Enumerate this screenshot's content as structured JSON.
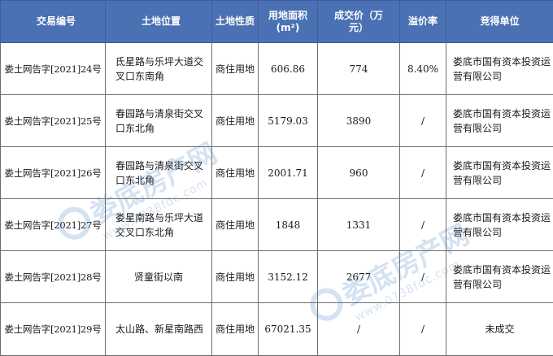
{
  "headers": {
    "code": "交易编号",
    "location": "土地位置",
    "nature": "土地性质",
    "area": "用地面积\n(m²)",
    "price": "成交价（万\n元）",
    "premium": "溢价率",
    "winner": "竞得单位"
  },
  "rows": [
    {
      "code": "娄土网告字[2021]24号",
      "location": "氐星路与乐坪大道交叉口东南角",
      "nature": "商住用地",
      "area": "606.86",
      "price": "774",
      "premium": "8.40%",
      "winner": "娄底市国有资本投资运营有限公司"
    },
    {
      "code": "娄土网告字[2021]25号",
      "location": "春园路与清泉街交叉口东北角",
      "nature": "商住用地",
      "area": "5179.03",
      "price": "3890",
      "premium": "/",
      "winner": "娄底市国有资本投资运营有限公司"
    },
    {
      "code": "娄土网告字[2021]26号",
      "location": "春园路与清泉街交叉口东北角",
      "nature": "商住用地",
      "area": "2001.71",
      "price": "960",
      "premium": "/",
      "winner": "娄底市国有资本投资运营有限公司"
    },
    {
      "code": "娄土网告字[2021]27号",
      "location": "娄星南路与乐坪大道交叉口东北角",
      "nature": "商住用地",
      "area": "1848",
      "price": "1331",
      "premium": "/",
      "winner": "娄底市国有资本投资运营有限公司"
    },
    {
      "code": "娄土网告字[2021]28号",
      "location": "贤童街以南",
      "nature": "商住用地",
      "area": "3152.12",
      "price": "2677",
      "premium": "/",
      "winner": "娄底市国有资本投资运营有限公司"
    },
    {
      "code": "娄土网告字[2021]29号",
      "location": "太山路、新星南路西",
      "nature": "商住用地",
      "area": "67021.35",
      "price": "/",
      "premium": "/",
      "winner": "未成交"
    }
  ],
  "watermark": {
    "name": "娄底房产网",
    "url": "www.0738fdc.com",
    "icon": "logo-icon"
  },
  "colors": {
    "header_bg": "#4a71b3",
    "header_text": "#ffffff",
    "watermark": "#3f7fc5"
  }
}
